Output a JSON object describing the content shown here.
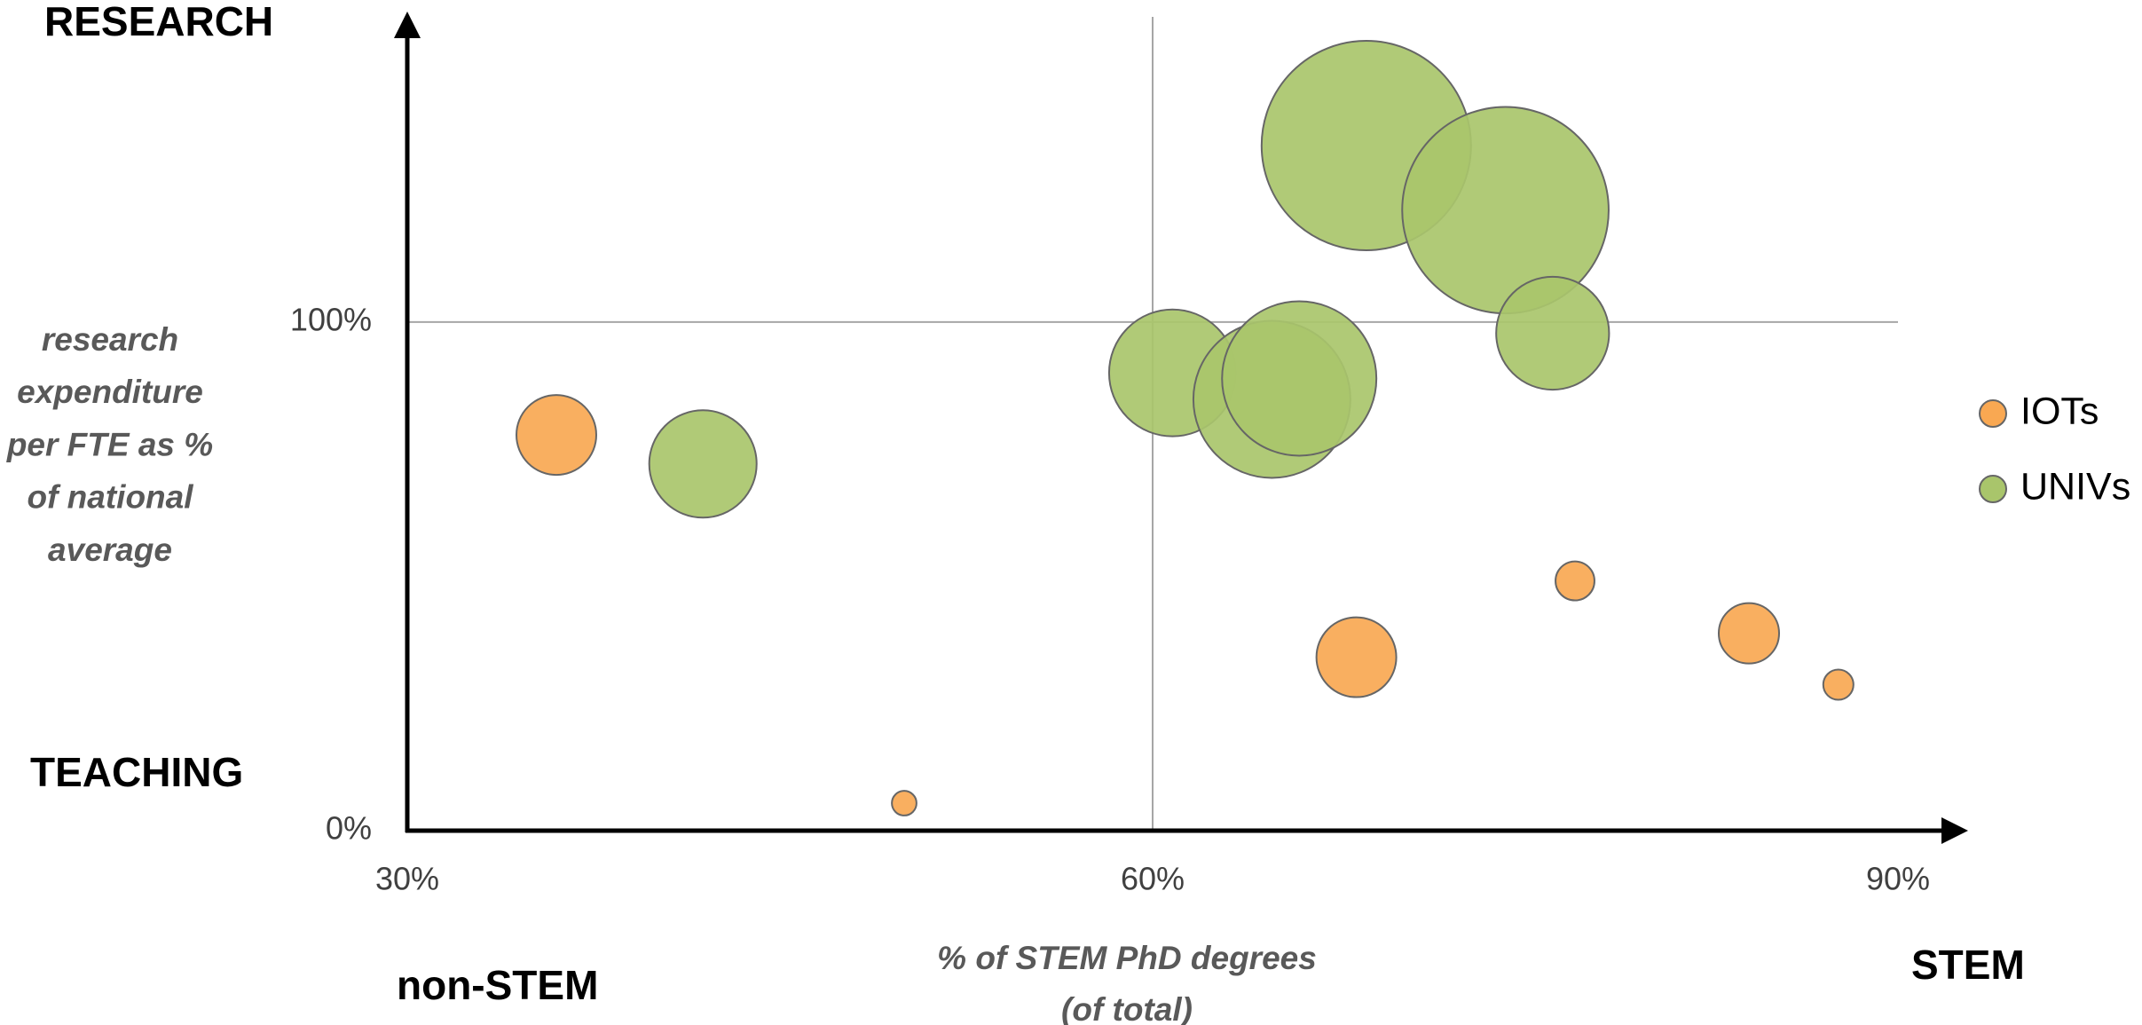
{
  "chart_data": {
    "type": "scatter",
    "annotations": [
      "RESEARCH",
      "TEACHING",
      "non-STEM",
      "STEM"
    ],
    "x_label": [
      "% of STEM PhD degrees",
      "(of total)"
    ],
    "y_label": [
      "research",
      "expenditure",
      "per FTE as %",
      "of national",
      "average"
    ],
    "xlim": [
      30,
      90
    ],
    "xticks": [
      {
        "value": 30,
        "label": "30%"
      },
      {
        "value": 60,
        "label": "60%"
      },
      {
        "value": 90,
        "label": "90%"
      }
    ],
    "ylim": [
      0,
      160
    ],
    "yticks": [
      {
        "value": 0,
        "label": "0%"
      },
      {
        "value": 100,
        "label": "100%"
      }
    ],
    "grid": true,
    "legend": "right",
    "series": [
      {
        "name": "IOTs",
        "color": "#f9a852",
        "x": [
          36.0,
          50.0,
          68.2,
          77.0,
          84.0,
          87.6
        ],
        "values": [
          77.8,
          5.4,
          34.1,
          49.1,
          38.8,
          28.7
        ],
        "sizes": [
          84,
          8,
          84,
          20,
          48,
          12
        ]
      },
      {
        "name": "UNIVs",
        "color": "#a9c56b",
        "x": [
          41.9,
          60.8,
          64.8,
          65.9,
          68.6,
          74.2,
          76.1
        ],
        "values": [
          72.1,
          90.0,
          84.8,
          88.9,
          134.7,
          122.0,
          97.8
        ],
        "sizes": [
          152,
          212,
          325,
          314,
          578,
          562,
          168
        ]
      }
    ]
  }
}
